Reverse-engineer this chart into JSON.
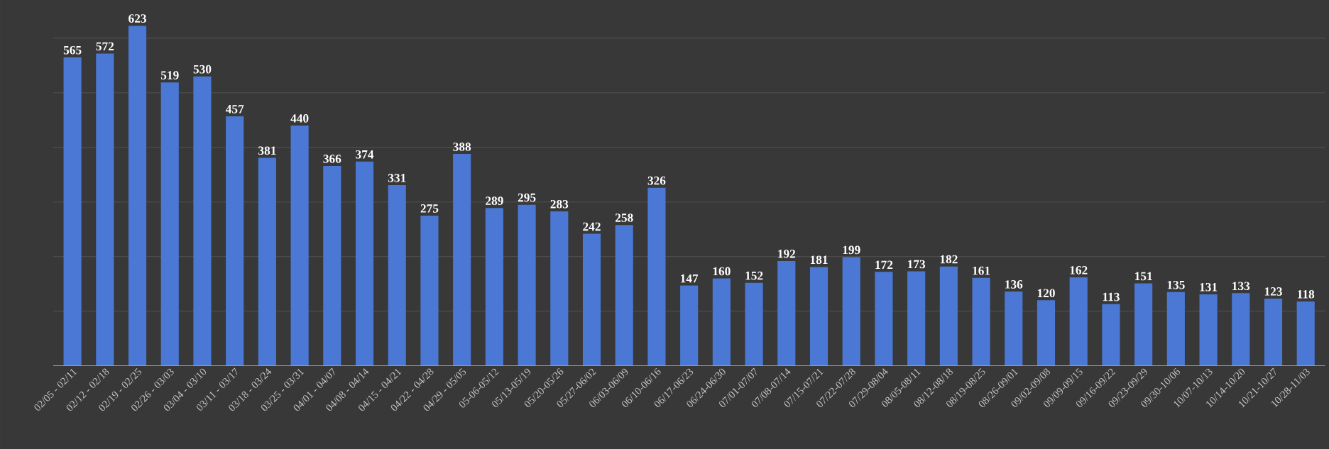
{
  "chart_data": {
    "type": "bar",
    "categories": [
      "02/05 - 02/11",
      "02/12 - 02/18",
      "02/19 - 02/25",
      "02/26 - 03/03",
      "03/04 - 03/10",
      "03/11 - 03/17",
      "03/18 - 03/24",
      "03/25 - 03/31",
      "04/01 - 04/07",
      "04/08 - 04/14",
      "04/15 - 04/21",
      "04/22 - 04/28",
      "04/29 - 05/05",
      "05-06-05/12",
      "05/13-05/19",
      "05/20-05/26",
      "05/27-06/02",
      "06/03-06/09",
      "06/10-06/16",
      "06/17-06/23",
      "06/24-06/30",
      "07/01-07/07",
      "07/08-07/14",
      "07/15-07/21",
      "07/22-07/28",
      "07/29-08/04",
      "08/05-08/11",
      "08/12-08/18",
      "08/19-08/25",
      "08/26-09/01",
      "09/02-09/08",
      "09/09-09/15",
      "09/16-09/22",
      "09/23-09/29",
      "09/30-10/06",
      "10/07-10/13",
      "10/14-10/20",
      "10/21-10/27",
      "10/28-11/03"
    ],
    "values": [
      565,
      572,
      623,
      519,
      530,
      457,
      381,
      440,
      366,
      374,
      331,
      275,
      388,
      289,
      295,
      283,
      242,
      258,
      326,
      147,
      160,
      152,
      192,
      181,
      199,
      172,
      173,
      182,
      161,
      136,
      120,
      162,
      113,
      151,
      135,
      131,
      133,
      123,
      118
    ],
    "color": "#4a78d4",
    "data_labels": true,
    "ylim": [
      0,
      670
    ],
    "yticks": [
      {
        "value": 100,
        "label": null
      },
      {
        "value": 200,
        "label": null
      },
      {
        "value": 300,
        "label": null
      },
      {
        "value": 400,
        "label": null
      },
      {
        "value": 500,
        "label": null
      },
      {
        "value": 600,
        "label": null
      }
    ],
    "tick_labels": "x",
    "grid": "y"
  }
}
